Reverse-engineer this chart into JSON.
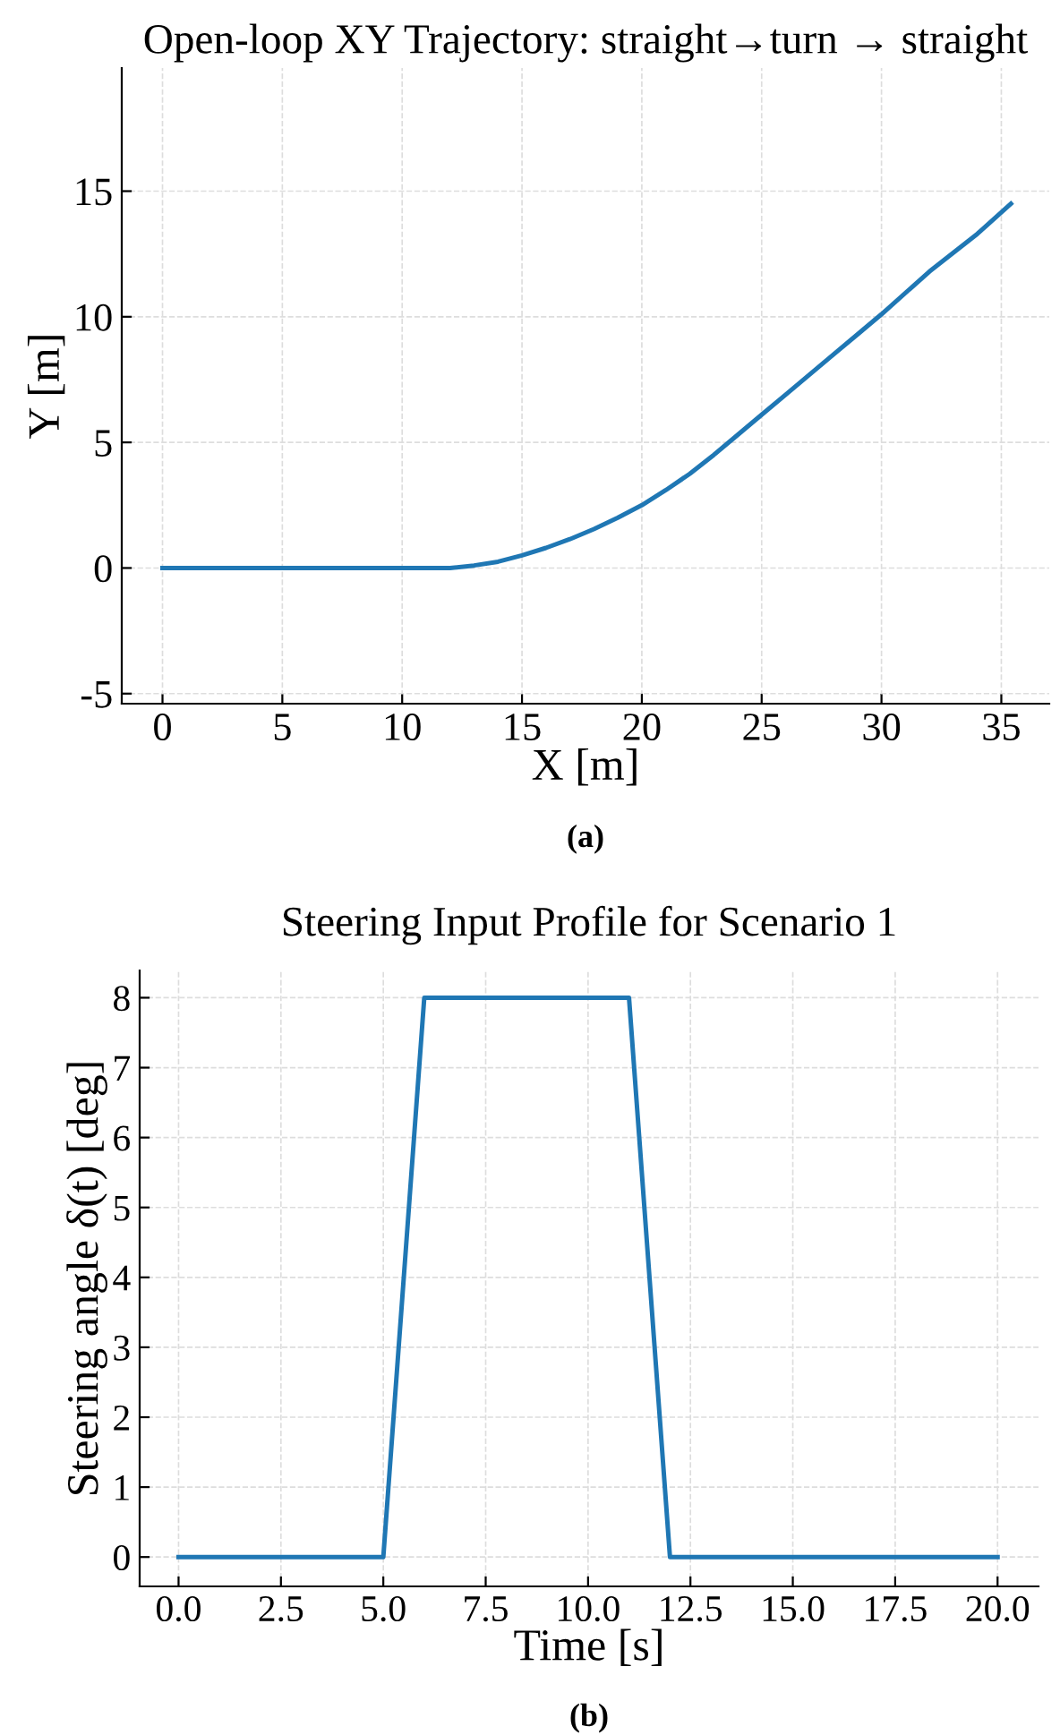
{
  "chart_data": [
    {
      "type": "line",
      "title": "Open-loop XY Trajectory: straight→turn → straight",
      "xlabel": "X [m]",
      "ylabel": "Y [m]",
      "annotations": [
        "(a)"
      ],
      "series": [
        {
          "color": "#1f77b4",
          "x": [
            0,
            12,
            13,
            14,
            15,
            16,
            17,
            18,
            19,
            20,
            21,
            22,
            23,
            24,
            25,
            26,
            27,
            28,
            29,
            30,
            32,
            34,
            35.4
          ],
          "values": [
            0,
            0,
            0.1,
            0.25,
            0.5,
            0.8,
            1.15,
            1.55,
            2.0,
            2.5,
            3.1,
            3.75,
            4.5,
            5.3,
            6.1,
            6.9,
            7.7,
            8.5,
            9.3,
            10.1,
            11.8,
            13.3,
            14.5
          ]
        }
      ],
      "xlim": [
        -1.7,
        37.0
      ],
      "ylim": [
        -5.4,
        19.9
      ],
      "xticks": [
        0,
        5,
        10,
        15,
        20,
        25,
        30,
        35
      ],
      "yticks": [
        -5,
        0,
        5,
        10,
        15
      ],
      "grid": true,
      "line_style": "solid",
      "marker": "none"
    },
    {
      "type": "line",
      "title": "Steering Input Profile for Scenario 1",
      "xlabel": "Time [s]",
      "ylabel": "Steering angle δ(t) [deg]",
      "annotations": [
        "(b)"
      ],
      "series": [
        {
          "color": "#1f77b4",
          "x": [
            0,
            5,
            6,
            11,
            12,
            20
          ],
          "values": [
            0,
            0,
            8,
            8,
            0,
            0
          ]
        }
      ],
      "xlim": [
        -0.95,
        21.0
      ],
      "ylim": [
        -0.42,
        8.39
      ],
      "xticks": [
        {
          "value": 0,
          "label": "0.0"
        },
        {
          "value": 2.5,
          "label": "2.5"
        },
        {
          "value": 5,
          "label": "5.0"
        },
        {
          "value": 7.5,
          "label": "7.5"
        },
        {
          "value": 10,
          "label": "10.0"
        },
        {
          "value": 12.5,
          "label": "12.5"
        },
        {
          "value": 15,
          "label": "15.0"
        },
        {
          "value": 17.5,
          "label": "17.5"
        },
        {
          "value": 20,
          "label": "20.0"
        }
      ],
      "yticks": [
        0,
        1,
        2,
        3,
        4,
        5,
        6,
        7,
        8
      ],
      "grid": true,
      "line_style": "solid",
      "marker": "none"
    }
  ]
}
